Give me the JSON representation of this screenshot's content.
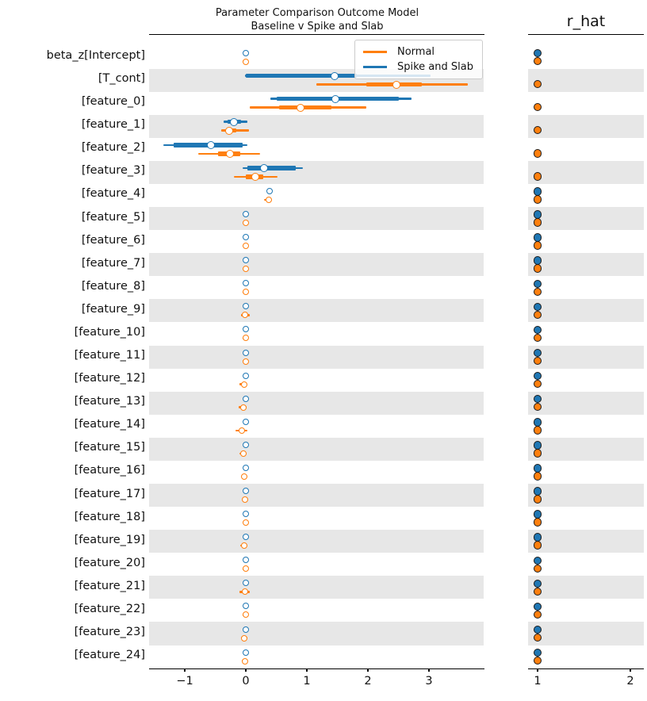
{
  "title": {
    "line1": "Parameter Comparison Outcome Model",
    "line2": "Baseline v Spike and Slab"
  },
  "legend": {
    "items": [
      {
        "label": "Normal",
        "color": "#ff7f0e"
      },
      {
        "label": "Spike and Slab",
        "color": "#1f77b4"
      }
    ]
  },
  "colors": {
    "normal": "#ff7f0e",
    "spike_and_slab": "#1f77b4",
    "band": "#e7e7e7",
    "axis": "#000000"
  },
  "chart_data": {
    "type": "forest",
    "title": "Parameter Comparison Outcome Model\nBaseline v Spike and Slab",
    "series_names": [
      "Normal",
      "Spike and Slab"
    ],
    "panels": [
      {
        "name": "comparison",
        "xlim": [
          -1.59,
          3.9
        ],
        "xticks": [
          {
            "v": -1,
            "label": "−1"
          },
          {
            "v": 0,
            "label": "0"
          },
          {
            "v": 1,
            "label": "1"
          },
          {
            "v": 2,
            "label": "2"
          },
          {
            "v": 3,
            "label": "3"
          }
        ]
      },
      {
        "name": "r_hat",
        "title": "r_hat",
        "xlim": [
          0.9,
          2.15
        ],
        "xticks": [
          {
            "v": 1,
            "label": "1"
          },
          {
            "v": 2,
            "label": "2"
          }
        ]
      }
    ],
    "rows": [
      {
        "label": "beta_z[Intercept]",
        "band": false,
        "spike": {
          "med": 0.0
        },
        "normal": {
          "med": 0.0,
          "lo": -0.05,
          "hi": 0.03
        },
        "rhat_spike": 1.0,
        "rhat_normal": 1.0
      },
      {
        "label": "[T_cont]",
        "band": true,
        "spike": {
          "lo": -0.01,
          "q1": 0.0,
          "q3": 1.82,
          "hi": 3.03,
          "med": 1.45
        },
        "normal": {
          "lo": 1.16,
          "q1": 1.97,
          "q3": 2.88,
          "hi": 3.64,
          "med": 2.47
        },
        "rhat_spike": null,
        "rhat_normal": 1.0
      },
      {
        "label": "[feature_0]",
        "band": false,
        "spike": {
          "lo": 0.4,
          "q1": 0.5,
          "q3": 2.5,
          "hi": 2.72,
          "med": 1.47
        },
        "normal": {
          "lo": 0.06,
          "q1": 0.55,
          "q3": 1.4,
          "hi": 1.97,
          "med": 0.89
        },
        "rhat_spike": null,
        "rhat_normal": 1.0
      },
      {
        "label": "[feature_1]",
        "band": true,
        "spike": {
          "lo": -0.37,
          "q1": -0.3,
          "q3": -0.08,
          "hi": 0.02,
          "med": -0.19
        },
        "normal": {
          "lo": -0.4,
          "q1": -0.33,
          "q3": -0.16,
          "hi": 0.05,
          "med": -0.27
        },
        "rhat_spike": null,
        "rhat_normal": 1.0
      },
      {
        "label": "[feature_2]",
        "band": false,
        "spike": {
          "lo": -1.35,
          "q1": -1.18,
          "q3": -0.05,
          "hi": 0.02,
          "med": -0.57
        },
        "normal": {
          "lo": -0.78,
          "q1": -0.45,
          "q3": -0.09,
          "hi": 0.23,
          "med": -0.26
        },
        "rhat_spike": null,
        "rhat_normal": 1.0
      },
      {
        "label": "[feature_3]",
        "band": true,
        "spike": {
          "lo": -0.05,
          "q1": 0.02,
          "q3": 0.82,
          "hi": 0.93,
          "med": 0.3
        },
        "normal": {
          "lo": -0.19,
          "q1": 0.0,
          "q3": 0.28,
          "hi": 0.52,
          "med": 0.15
        },
        "rhat_spike": null,
        "rhat_normal": 1.0
      },
      {
        "label": "[feature_4]",
        "band": false,
        "spike": {
          "med": 0.39
        },
        "normal": {
          "med": 0.38,
          "lo": 0.3,
          "hi": 0.43
        },
        "rhat_spike": 1.0,
        "rhat_normal": 1.0
      },
      {
        "label": "[feature_5]",
        "band": true,
        "spike": {
          "med": 0.0
        },
        "normal": {
          "med": 0.0,
          "lo": -0.05,
          "hi": 0.03
        },
        "rhat_spike": 1.0,
        "rhat_normal": 1.0
      },
      {
        "label": "[feature_6]",
        "band": false,
        "spike": {
          "med": 0.0
        },
        "normal": {
          "med": 0.0,
          "lo": -0.05,
          "hi": 0.03
        },
        "rhat_spike": 1.0,
        "rhat_normal": 1.0
      },
      {
        "label": "[feature_7]",
        "band": true,
        "spike": {
          "med": 0.0
        },
        "normal": {
          "med": 0.0,
          "lo": -0.05,
          "hi": 0.03
        },
        "rhat_spike": 1.0,
        "rhat_normal": 1.0
      },
      {
        "label": "[feature_8]",
        "band": false,
        "spike": {
          "med": 0.0
        },
        "normal": {
          "med": 0.0,
          "lo": -0.05,
          "hi": 0.03
        },
        "rhat_spike": 1.0,
        "rhat_normal": 1.0
      },
      {
        "label": "[feature_9]",
        "band": true,
        "spike": {
          "med": 0.0
        },
        "normal": {
          "med": -0.01,
          "lo": -0.08,
          "hi": 0.06
        },
        "rhat_spike": 1.0,
        "rhat_normal": 1.0
      },
      {
        "label": "[feature_10]",
        "band": false,
        "spike": {
          "med": 0.0
        },
        "normal": {
          "med": 0.0,
          "lo": -0.05,
          "hi": 0.03
        },
        "rhat_spike": 1.0,
        "rhat_normal": 1.0
      },
      {
        "label": "[feature_11]",
        "band": true,
        "spike": {
          "med": 0.0
        },
        "normal": {
          "med": 0.0,
          "lo": -0.05,
          "hi": 0.03
        },
        "rhat_spike": 1.0,
        "rhat_normal": 1.0
      },
      {
        "label": "[feature_12]",
        "band": false,
        "spike": {
          "med": 0.0
        },
        "normal": {
          "med": -0.03,
          "lo": -0.1,
          "hi": 0.01
        },
        "rhat_spike": 1.0,
        "rhat_normal": 1.0
      },
      {
        "label": "[feature_13]",
        "band": true,
        "spike": {
          "med": 0.0
        },
        "normal": {
          "med": -0.04,
          "lo": -0.12,
          "hi": 0.01
        },
        "rhat_spike": 1.0,
        "rhat_normal": 1.0
      },
      {
        "label": "[feature_14]",
        "band": false,
        "spike": {
          "med": 0.0
        },
        "normal": {
          "med": -0.06,
          "lo": -0.17,
          "hi": 0.02
        },
        "rhat_spike": 1.0,
        "rhat_normal": 1.0
      },
      {
        "label": "[feature_15]",
        "band": true,
        "spike": {
          "med": 0.0
        },
        "normal": {
          "med": -0.04,
          "lo": -0.1,
          "hi": 0.01
        },
        "rhat_spike": 1.0,
        "rhat_normal": 1.0
      },
      {
        "label": "[feature_16]",
        "band": false,
        "spike": {
          "med": 0.0
        },
        "normal": {
          "med": -0.02,
          "lo": -0.08,
          "hi": 0.02
        },
        "rhat_spike": 1.0,
        "rhat_normal": 1.0
      },
      {
        "label": "[feature_17]",
        "band": true,
        "spike": {
          "med": 0.0
        },
        "normal": {
          "med": -0.01,
          "lo": -0.07,
          "hi": 0.04
        },
        "rhat_spike": 1.0,
        "rhat_normal": 1.0
      },
      {
        "label": "[feature_18]",
        "band": false,
        "spike": {
          "med": 0.0
        },
        "normal": {
          "med": 0.0,
          "lo": -0.05,
          "hi": 0.03
        },
        "rhat_spike": 1.0,
        "rhat_normal": 1.0
      },
      {
        "label": "[feature_19]",
        "band": true,
        "spike": {
          "med": 0.0
        },
        "normal": {
          "med": -0.02,
          "lo": -0.09,
          "hi": 0.03
        },
        "rhat_spike": 1.0,
        "rhat_normal": 1.0
      },
      {
        "label": "[feature_20]",
        "band": false,
        "spike": {
          "med": 0.0
        },
        "normal": {
          "med": 0.0,
          "lo": -0.05,
          "hi": 0.03
        },
        "rhat_spike": 1.0,
        "rhat_normal": 1.0
      },
      {
        "label": "[feature_21]",
        "band": true,
        "spike": {
          "med": 0.0
        },
        "normal": {
          "med": -0.01,
          "lo": -0.1,
          "hi": 0.06
        },
        "rhat_spike": 1.0,
        "rhat_normal": 1.0
      },
      {
        "label": "[feature_22]",
        "band": false,
        "spike": {
          "med": 0.0
        },
        "normal": {
          "med": 0.0,
          "lo": -0.05,
          "hi": 0.03
        },
        "rhat_spike": 1.0,
        "rhat_normal": 1.0
      },
      {
        "label": "[feature_23]",
        "band": true,
        "spike": {
          "med": 0.0
        },
        "normal": {
          "med": -0.02,
          "lo": -0.08,
          "hi": 0.02
        },
        "rhat_spike": 1.0,
        "rhat_normal": 1.0
      },
      {
        "label": "[feature_24]",
        "band": false,
        "spike": {
          "med": 0.0
        },
        "normal": {
          "med": -0.01,
          "lo": -0.06,
          "hi": 0.03
        },
        "rhat_spike": 1.0,
        "rhat_normal": 1.0
      }
    ]
  }
}
